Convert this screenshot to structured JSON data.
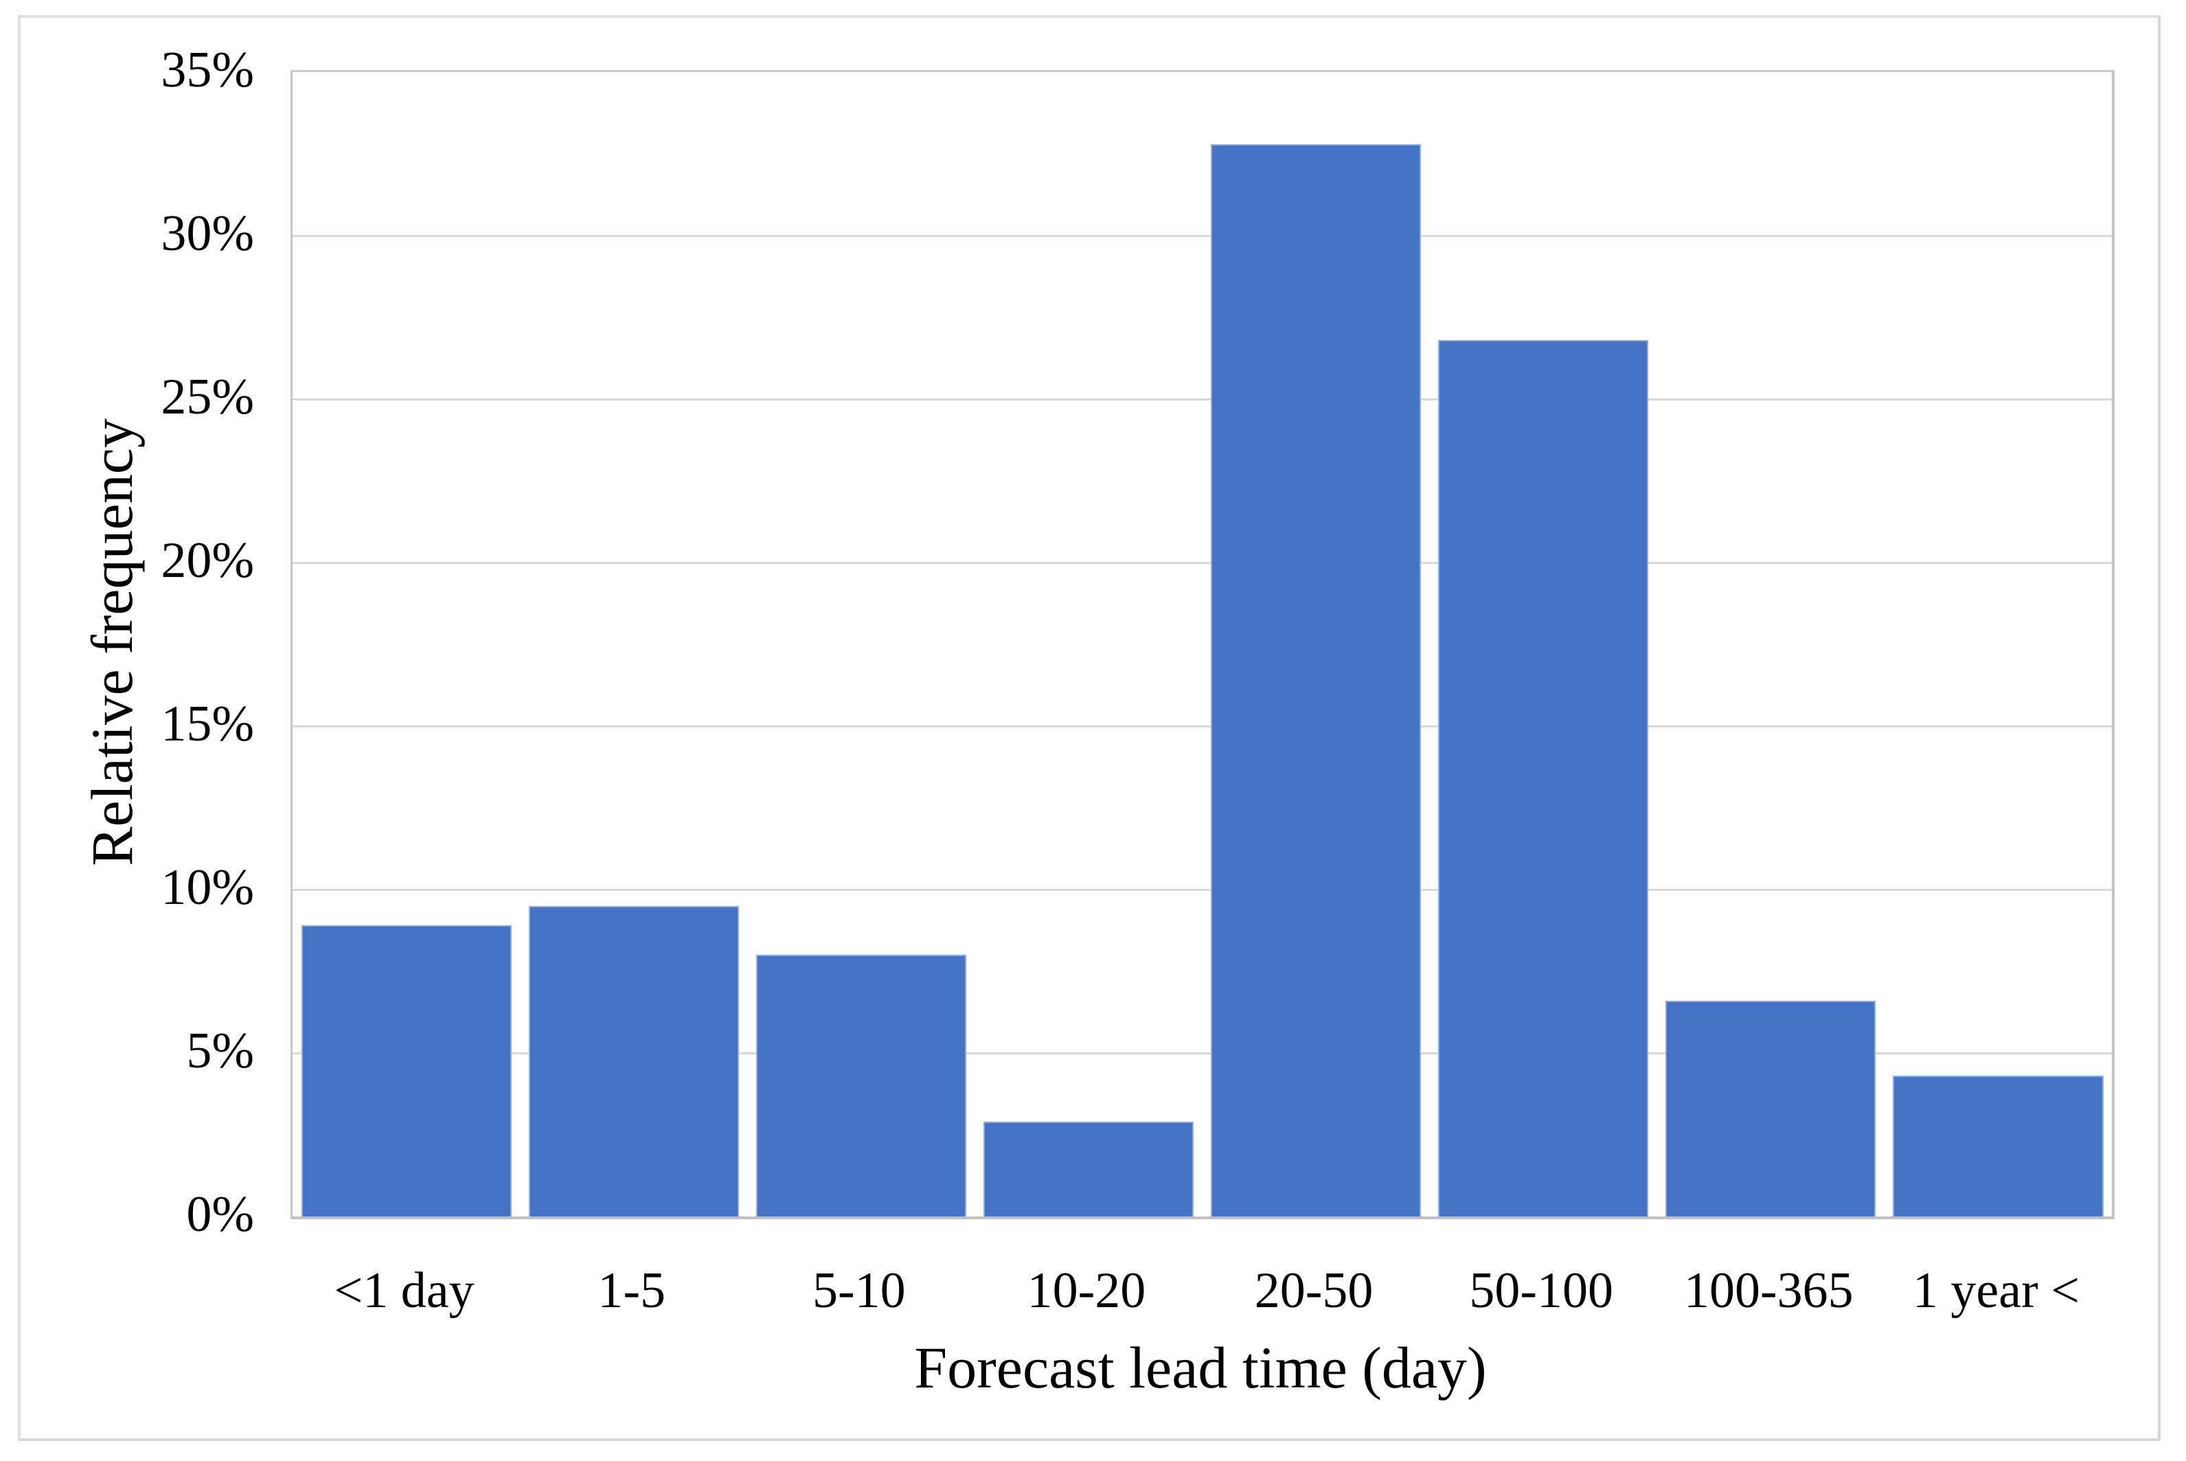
{
  "chart_data": {
    "type": "bar",
    "categories": [
      "<1 day",
      "1-5",
      "5-10",
      "10-20",
      "20-50",
      "50-100",
      "100-365",
      "1 year <"
    ],
    "values": [
      8.9,
      9.5,
      8.0,
      2.9,
      32.8,
      26.8,
      6.6,
      4.3
    ],
    "value_unit": "%",
    "title": "",
    "xlabel": "Forecast lead time (day)",
    "ylabel": "Relative frequency",
    "ylim": [
      0,
      35
    ],
    "y_tick_step": 5,
    "y_tick_labels": [
      "0%",
      "5%",
      "10%",
      "15%",
      "20%",
      "25%",
      "30%",
      "35%"
    ],
    "grid": "horizontal",
    "legend": "none",
    "colors": {
      "bar_fill": "#4472C4",
      "bar_edge": "#8FAADC",
      "gridline": "#D9D9D9",
      "axis_line": "#C4C4C4",
      "figure_border": "#DEDEDE",
      "text": "#000000",
      "background": "#FFFFFF"
    }
  }
}
